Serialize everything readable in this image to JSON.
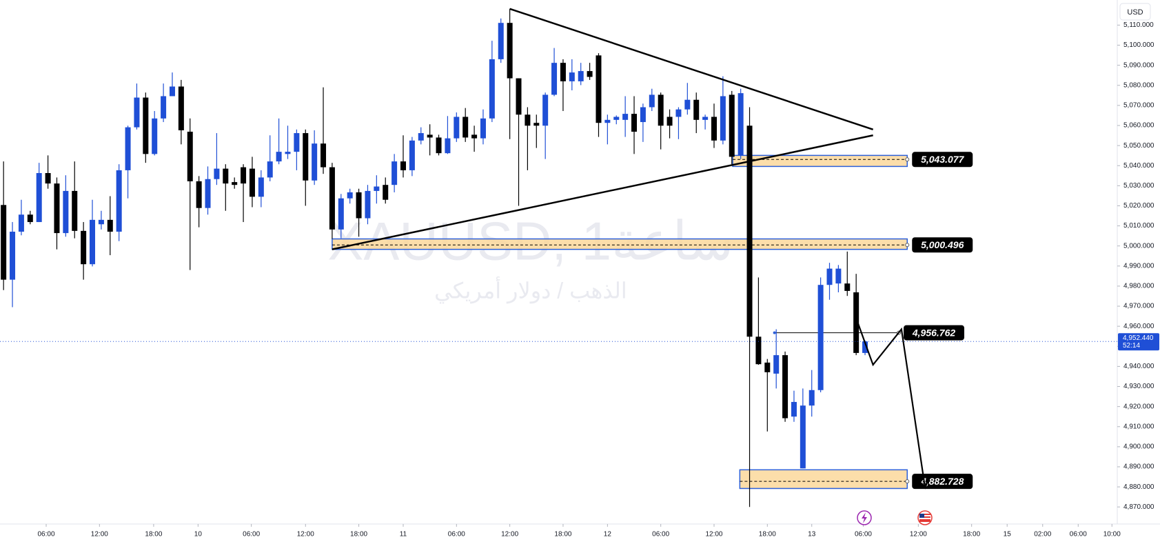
{
  "chart_data": {
    "type": "candlestick",
    "watermark": "XAUUSD, 1ساعة",
    "watermark_subtitle": "الذهب / دولار أمريكي",
    "currency": "USD",
    "colors": {
      "up": "#1f4fd6",
      "down": "#000000",
      "zone": "#fcd89b",
      "zone_border": "#2b5fd9"
    },
    "open": [
      5020.4,
      4983.2,
      5007.1,
      5015.6,
      5011.9,
      5036.3,
      5031.1,
      5006.4,
      5027.4,
      5007.5,
      4990.9,
      5010.8,
      5013.0,
      5007.1,
      5037.7,
      5059.1,
      5073.9,
      5045.8,
      5063.5,
      5074.6,
      5079.4,
      5056.9,
      5032.2,
      5018.9,
      5033.3,
      5038.5,
      5031.8,
      5039.2,
      5038.5,
      5024.5,
      5034.1,
      5042.1,
      5045.8,
      5046.9,
      5056.2,
      5032.6,
      5051.0,
      5039.2,
      5008.2,
      5023.7,
      5026.7,
      5013.8,
      5027.4,
      5030.4,
      5030.4,
      5042.1,
      5037.7,
      5052.5,
      5055.4,
      5054.0,
      5046.2,
      5053.6,
      5064.3,
      5055.4,
      5053.6,
      5063.5,
      5093.0,
      5111.1,
      5083.5,
      5065.4,
      5061.3,
      5059.9,
      5075.3,
      5091.2,
      5082.0,
      5082.0,
      5087.1,
      5094.9,
      5061.3,
      5062.8,
      5062.8,
      5065.8,
      5061.7,
      5069.1,
      5075.3,
      5064.3,
      5064.3,
      5068.0,
      5072.8,
      5062.8,
      5064.3,
      5052.5,
      5075.3,
      5045.1,
      5059.9,
      4954.8,
      4941.9,
      4936.4,
      4945.6,
      4915.0,
      4889.2,
      4920.5,
      4928.2,
      4980.6,
      4981.3,
      4981.3,
      4976.9,
      4946.7
    ],
    "high": [
      5042.1,
      5011.9,
      5023.0,
      5017.5,
      5041.4,
      5045.1,
      5034.1,
      5035.2,
      5042.1,
      5011.9,
      5023.0,
      5017.5,
      5024.8,
      5040.7,
      5059.9,
      5080.9,
      5076.4,
      5067.2,
      5080.9,
      5086.4,
      5082.7,
      5063.5,
      5034.8,
      5039.6,
      5056.2,
      5040.7,
      5034.1,
      5040.7,
      5044.4,
      5037.7,
      5055.1,
      5063.5,
      5059.9,
      5058.0,
      5058.0,
      5057.6,
      5079.0,
      5041.4,
      5025.9,
      5028.5,
      5028.5,
      5030.4,
      5035.2,
      5034.1,
      5045.8,
      5055.1,
      5054.3,
      5059.1,
      5060.6,
      5055.4,
      5064.7,
      5066.5,
      5068.7,
      5059.9,
      5068.0,
      5102.2,
      5113.3,
      5118.1,
      5083.5,
      5069.1,
      5065.4,
      5076.4,
      5098.6,
      5093.0,
      5093.0,
      5091.2,
      5091.2,
      5096.0,
      5065.4,
      5065.0,
      5074.6,
      5074.6,
      5070.9,
      5078.3,
      5076.4,
      5068.0,
      5069.1,
      5081.2,
      5076.4,
      5065.4,
      5070.9,
      5084.5,
      5077.2,
      5078.3,
      5069.1,
      4984.3,
      4943.7,
      4958.5,
      4947.4,
      4927.9,
      4929.0,
      4938.2,
      4984.3,
      4991.6,
      4990.5,
      4997.2,
      4986.1,
      4952.9
    ],
    "low": [
      4978.0,
      4969.5,
      5005.3,
      5010.8,
      5011.9,
      5028.5,
      4998.3,
      5004.6,
      5003.8,
      4983.2,
      4989.8,
      5008.2,
      4995.4,
      5002.4,
      5023.7,
      5058.0,
      5041.4,
      5045.1,
      5061.7,
      5074.6,
      5050.6,
      4988.0,
      5009.3,
      5015.6,
      5030.4,
      5017.5,
      5028.5,
      5011.9,
      5019.3,
      5019.3,
      5032.2,
      5040.7,
      5043.3,
      5037.7,
      5020.0,
      5030.4,
      5035.9,
      5003.5,
      5003.8,
      5021.1,
      5004.6,
      5010.8,
      5021.1,
      5021.1,
      5026.7,
      5034.1,
      5034.8,
      5050.6,
      5045.1,
      5045.1,
      5045.8,
      5051.8,
      5051.8,
      5046.9,
      5050.6,
      5061.7,
      5091.2,
      5053.2,
      5020.0,
      5037.7,
      5048.8,
      5043.3,
      5074.6,
      5067.2,
      5077.5,
      5080.1,
      5082.7,
      5054.3,
      5050.6,
      5060.6,
      5054.3,
      5045.8,
      5051.8,
      5067.2,
      5048.1,
      5053.6,
      5053.2,
      5065.4,
      5056.2,
      5058.0,
      5048.8,
      5050.6,
      5040.7,
      5043.3,
      4870.0,
      4940.8,
      4907.6,
      4929.0,
      4912.4,
      4912.4,
      4889.2,
      4915.0,
      4927.1,
      4973.2,
      4976.9,
      4975.1,
      4945.6,
      4945.6
    ],
    "close": [
      4983.2,
      5007.1,
      5015.6,
      5011.9,
      5036.3,
      5031.1,
      5006.4,
      5027.4,
      5007.5,
      4990.9,
      5013.0,
      5013.0,
      5007.1,
      5037.7,
      5059.1,
      5073.9,
      5045.8,
      5063.5,
      5074.6,
      5079.4,
      5057.6,
      5032.2,
      5018.9,
      5033.3,
      5038.5,
      5031.1,
      5030.4,
      5031.1,
      5024.5,
      5034.1,
      5042.1,
      5046.9,
      5046.9,
      5056.2,
      5032.6,
      5051.0,
      5039.2,
      5008.2,
      5023.7,
      5026.7,
      5013.8,
      5027.4,
      5029.6,
      5023.0,
      5042.1,
      5037.7,
      5052.5,
      5056.2,
      5054.0,
      5046.2,
      5053.6,
      5064.3,
      5054.0,
      5053.6,
      5063.5,
      5093.0,
      5111.1,
      5083.5,
      5065.4,
      5059.9,
      5059.9,
      5075.3,
      5091.2,
      5082.0,
      5086.4,
      5087.1,
      5084.2,
      5061.3,
      5062.8,
      5064.3,
      5065.8,
      5056.9,
      5069.1,
      5075.3,
      5059.9,
      5059.9,
      5068.0,
      5072.8,
      5062.8,
      5064.3,
      5052.5,
      5074.6,
      5044.4,
      5076.1,
      4954.8,
      4941.1,
      4937.1,
      4945.6,
      4914.2,
      4922.3,
      4920.5,
      4928.2,
      4980.6,
      4988.7,
      4988.7,
      4977.6,
      4946.7,
      4952.44
    ],
    "xlim": [
      -0.4,
      125.4
    ],
    "xticks": [
      {
        "value": 4.8,
        "label": "06:00"
      },
      {
        "value": 10.8,
        "label": "12:00"
      },
      {
        "value": 16.9,
        "label": "18:00"
      },
      {
        "value": 21.9,
        "label": "10"
      },
      {
        "value": 27.9,
        "label": "06:00"
      },
      {
        "value": 34,
        "label": "12:00"
      },
      {
        "value": 40,
        "label": "18:00"
      },
      {
        "value": 45,
        "label": "11"
      },
      {
        "value": 51,
        "label": "06:00"
      },
      {
        "value": 57,
        "label": "12:00"
      },
      {
        "value": 63,
        "label": "18:00"
      },
      {
        "value": 68,
        "label": "12"
      },
      {
        "value": 74,
        "label": "06:00"
      },
      {
        "value": 80,
        "label": "12:00"
      },
      {
        "value": 86,
        "label": "18:00"
      },
      {
        "value": 91,
        "label": "13"
      },
      {
        "value": 96.8,
        "label": "06:00"
      },
      {
        "value": 103,
        "label": "12:00"
      },
      {
        "value": 109,
        "label": "18:00"
      },
      {
        "value": 113,
        "label": "15"
      },
      {
        "value": 117,
        "label": "02:00"
      },
      {
        "value": 121,
        "label": "06:00"
      },
      {
        "value": 124.8,
        "label": "10:00"
      }
    ],
    "ylim": [
      4861.5,
      5122.5
    ],
    "yticks": [
      {
        "value": 4870,
        "label": "4,870.000"
      },
      {
        "value": 4880,
        "label": "4,880.000"
      },
      {
        "value": 4890,
        "label": "4,890.000"
      },
      {
        "value": 4900,
        "label": "4,900.000"
      },
      {
        "value": 4910,
        "label": "4,910.000"
      },
      {
        "value": 4920,
        "label": "4,920.000"
      },
      {
        "value": 4930,
        "label": "4,930.000"
      },
      {
        "value": 4940,
        "label": "4,940.000"
      },
      {
        "value": 4950,
        "label": "4,950.000"
      },
      {
        "value": 4960,
        "label": "4,960.000"
      },
      {
        "value": 4970,
        "label": "4,970.000"
      },
      {
        "value": 4980,
        "label": "4,980.000"
      },
      {
        "value": 4990,
        "label": "4,990.000"
      },
      {
        "value": 5000,
        "label": "5,000.000"
      },
      {
        "value": 5010,
        "label": "5,010.000"
      },
      {
        "value": 5020,
        "label": "5,020.000"
      },
      {
        "value": 5030,
        "label": "5,030.000"
      },
      {
        "value": 5040,
        "label": "5,040.000"
      },
      {
        "value": 5050,
        "label": "5,050.000"
      },
      {
        "value": 5060,
        "label": "5,060.000"
      },
      {
        "value": 5070,
        "label": "5,070.000"
      },
      {
        "value": 5080,
        "label": "5,080.000"
      },
      {
        "value": 5090,
        "label": "5,090.000"
      },
      {
        "value": 5100,
        "label": "5,100.000"
      },
      {
        "value": 5110,
        "label": "5,110.000"
      }
    ],
    "last_price": {
      "value": 4952.44,
      "label": "4,952.440",
      "countdown": "52:14"
    },
    "levels": [
      {
        "value": 5043.077,
        "label": "5,043.077",
        "zone": [
          5045.1,
          5039.6
        ],
        "start": 82.1,
        "end": 101.75
      },
      {
        "value": 5000.496,
        "label": "5,000.496",
        "zone": [
          5003.5,
          4998.3
        ],
        "start": 37.0,
        "end": 101.75
      },
      {
        "value": 4956.762,
        "label": "4,956.762",
        "start": 86.8,
        "end": 100.8
      },
      {
        "value": 4882.728,
        "label": "4,882.728",
        "zone": [
          4888.5,
          4879.2
        ],
        "start": 82.9,
        "end": 101.75
      }
    ],
    "trend_lines": [
      [
        [
          57,
          5118.1
        ],
        [
          97.9,
          5058.0
        ]
      ],
      [
        [
          37,
          4998.3
        ],
        [
          97.9,
          5055.1
        ]
      ]
    ],
    "projection": [
      [
        96,
        4964.0
      ],
      [
        97.9,
        4940.8
      ],
      [
        101.1,
        4958.5
      ],
      [
        103.75,
        4879.8
      ]
    ]
  }
}
